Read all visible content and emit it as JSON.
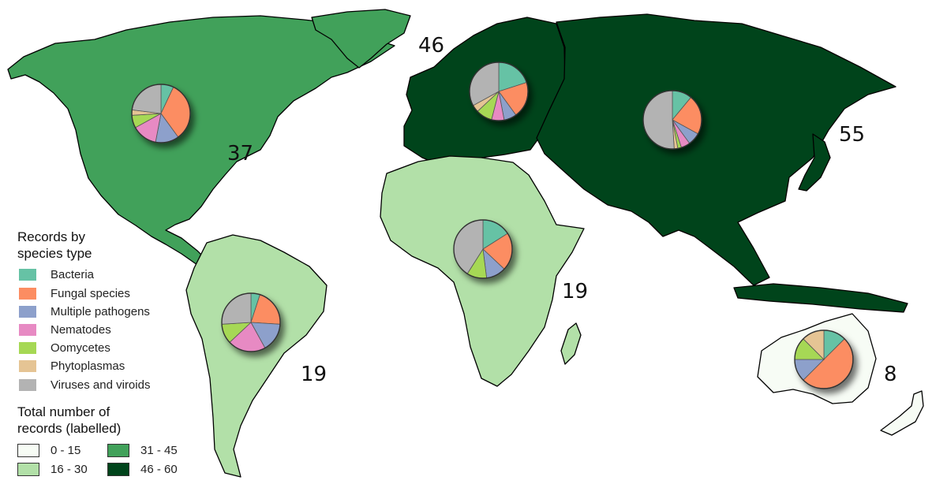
{
  "region_totals": [
    {
      "region": "North America",
      "total": "37",
      "bucket": "31-45"
    },
    {
      "region": "Europe",
      "total": "46",
      "bucket": "46-60"
    },
    {
      "region": "Asia",
      "total": "55",
      "bucket": "46-60"
    },
    {
      "region": "Africa",
      "total": "19",
      "bucket": "16-30"
    },
    {
      "region": "South America",
      "total": "19",
      "bucket": "16-30"
    },
    {
      "region": "Oceania",
      "total": "8",
      "bucket": "0-15"
    }
  ],
  "legend": {
    "species_title_line1": "Records by",
    "species_title_line2": "species type",
    "species": [
      {
        "label": "Bacteria",
        "color": "#66c2a5"
      },
      {
        "label": "Fungal species",
        "color": "#fc8d62"
      },
      {
        "label": "Multiple pathogens",
        "color": "#8da0cb"
      },
      {
        "label": "Nematodes",
        "color": "#e78ac3"
      },
      {
        "label": "Oomycetes",
        "color": "#a6d854"
      },
      {
        "label": "Phytoplasmas",
        "color": "#e5c494"
      },
      {
        "label": "Viruses and viroids",
        "color": "#b3b3b3"
      }
    ],
    "total_title_line1": "Total number of",
    "total_title_line2": "records (labelled)",
    "scale": [
      {
        "label": "0 - 15",
        "color": "#f7fcf5"
      },
      {
        "label": "16 - 30",
        "color": "#b2e0a8"
      },
      {
        "label": "31 - 45",
        "color": "#41a15a"
      },
      {
        "label": "46 - 60",
        "color": "#00441b"
      }
    ]
  },
  "pie_data": [
    {
      "region": "North America",
      "fractions": [
        0.07,
        0.33,
        0.13,
        0.14,
        0.07,
        0.03,
        0.23
      ]
    },
    {
      "region": "Europe",
      "fractions": [
        0.2,
        0.2,
        0.07,
        0.07,
        0.09,
        0.04,
        0.33
      ]
    },
    {
      "region": "Asia",
      "fractions": [
        0.11,
        0.22,
        0.07,
        0.05,
        0.02,
        0.02,
        0.51
      ]
    },
    {
      "region": "Africa",
      "fractions": [
        0.16,
        0.21,
        0.11,
        0.0,
        0.11,
        0.0,
        0.41
      ]
    },
    {
      "region": "South America",
      "fractions": [
        0.05,
        0.21,
        0.16,
        0.21,
        0.11,
        0.0,
        0.26
      ]
    },
    {
      "region": "Oceania",
      "fractions": [
        0.125,
        0.5,
        0.125,
        0.0,
        0.125,
        0.125,
        0.0
      ]
    }
  ]
}
